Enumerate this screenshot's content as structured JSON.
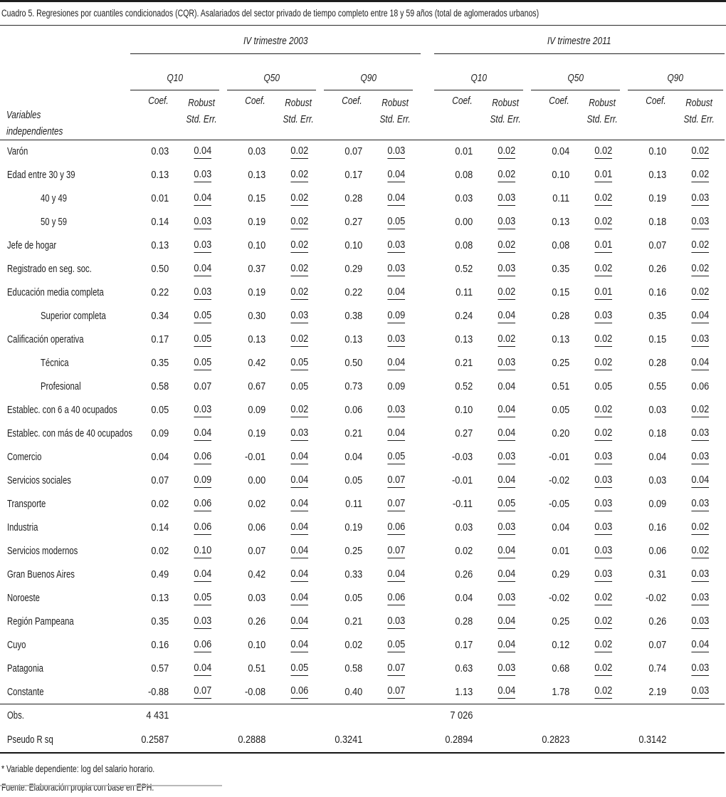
{
  "title": "Cuadro 5. Regresiones por cuantiles condicionados (CQR). Asalariados del sector privado de tiempo completo entre 18 y 59 años (total de aglomerados urbanos)",
  "colors": {
    "text": "#1e1e1e",
    "rule": "#1f1f1f",
    "remnant_rule": "#b9b9b9"
  },
  "table": {
    "variables_header_line1": "Variables",
    "variables_header_line2": "independientes",
    "group_2003": "IV trimestre 2003",
    "group_2011": "IV trimestre 2011",
    "quantiles": [
      "Q10",
      "Q50",
      "Q90"
    ],
    "coef_header": "Coef.",
    "se_header_line1": "Robust",
    "se_header_line2": "Std. Err.",
    "rows": [
      {
        "label": "Varón",
        "indent": false,
        "se_underline": true,
        "values": [
          "0.03",
          "0.04",
          "0.03",
          "0.02",
          "0.07",
          "0.03",
          "0.01",
          "0.02",
          "0.04",
          "0.02",
          "0.10",
          "0.02"
        ]
      },
      {
        "label": "Edad entre 30 y 39",
        "indent": false,
        "se_underline": true,
        "values": [
          "0.13",
          "0.03",
          "0.13",
          "0.02",
          "0.17",
          "0.04",
          "0.08",
          "0.02",
          "0.10",
          "0.01",
          "0.13",
          "0.02"
        ]
      },
      {
        "label": "40 y 49",
        "indent": true,
        "se_underline": true,
        "values": [
          "0.01",
          "0.04",
          "0.15",
          "0.02",
          "0.28",
          "0.04",
          "0.03",
          "0.03",
          "0.11",
          "0.02",
          "0.19",
          "0.03"
        ]
      },
      {
        "label": "50 y 59",
        "indent": true,
        "se_underline": true,
        "values": [
          "0.14",
          "0.03",
          "0.19",
          "0.02",
          "0.27",
          "0.05",
          "0.00",
          "0.03",
          "0.13",
          "0.02",
          "0.18",
          "0.03"
        ]
      },
      {
        "label": "Jefe de hogar",
        "indent": false,
        "se_underline": true,
        "values": [
          "0.13",
          "0.03",
          "0.10",
          "0.02",
          "0.10",
          "0.03",
          "0.08",
          "0.02",
          "0.08",
          "0.01",
          "0.07",
          "0.02"
        ]
      },
      {
        "label": "Registrado en seg. soc.",
        "indent": false,
        "se_underline": true,
        "values": [
          "0.50",
          "0.04",
          "0.37",
          "0.02",
          "0.29",
          "0.03",
          "0.52",
          "0.03",
          "0.35",
          "0.02",
          "0.26",
          "0.02"
        ]
      },
      {
        "label": "Educación media completa",
        "indent": false,
        "se_underline": true,
        "values": [
          "0.22",
          "0.03",
          "0.19",
          "0.02",
          "0.22",
          "0.04",
          "0.11",
          "0.02",
          "0.15",
          "0.01",
          "0.16",
          "0.02"
        ]
      },
      {
        "label": "Superior completa",
        "indent": true,
        "se_underline": true,
        "values": [
          "0.34",
          "0.05",
          "0.30",
          "0.03",
          "0.38",
          "0.09",
          "0.24",
          "0.04",
          "0.28",
          "0.03",
          "0.35",
          "0.04"
        ]
      },
      {
        "label": "Calificación operativa",
        "indent": false,
        "se_underline": true,
        "values": [
          "0.17",
          "0.05",
          "0.13",
          "0.02",
          "0.13",
          "0.03",
          "0.13",
          "0.02",
          "0.13",
          "0.02",
          "0.15",
          "0.03"
        ]
      },
      {
        "label": "Técnica",
        "indent": true,
        "se_underline": true,
        "values": [
          "0.35",
          "0.05",
          "0.42",
          "0.05",
          "0.50",
          "0.04",
          "0.21",
          "0.03",
          "0.25",
          "0.02",
          "0.28",
          "0.04"
        ]
      },
      {
        "label": "Profesional",
        "indent": true,
        "se_underline": false,
        "values": [
          "0.58",
          "0.07",
          "0.67",
          "0.05",
          "0.73",
          "0.09",
          "0.52",
          "0.04",
          "0.51",
          "0.05",
          "0.55",
          "0.06"
        ]
      },
      {
        "label": "Establec. con 6 a 40 ocupados",
        "indent": false,
        "se_underline": true,
        "values": [
          "0.05",
          "0.03",
          "0.09",
          "0.02",
          "0.06",
          "0.03",
          "0.10",
          "0.04",
          "0.05",
          "0.02",
          "0.03",
          "0.02"
        ]
      },
      {
        "label": "Establec. con más de 40 ocupados",
        "indent": false,
        "se_underline": true,
        "values": [
          "0.09",
          "0.04",
          "0.19",
          "0.03",
          "0.21",
          "0.04",
          "0.27",
          "0.04",
          "0.20",
          "0.02",
          "0.18",
          "0.03"
        ]
      },
      {
        "label": "Comercio",
        "indent": false,
        "se_underline": true,
        "values": [
          "0.04",
          "0.06",
          "-0.01",
          "0.04",
          "0.04",
          "0.05",
          "-0.03",
          "0.03",
          "-0.01",
          "0.03",
          "0.04",
          "0.03"
        ]
      },
      {
        "label": "Servicios sociales",
        "indent": false,
        "se_underline": true,
        "values": [
          "0.07",
          "0.09",
          "0.00",
          "0.04",
          "0.05",
          "0.07",
          "-0.01",
          "0.04",
          "-0.02",
          "0.03",
          "0.03",
          "0.04"
        ]
      },
      {
        "label": "Transporte",
        "indent": false,
        "se_underline": true,
        "values": [
          "0.02",
          "0.06",
          "0.02",
          "0.04",
          "0.11",
          "0.07",
          "-0.11",
          "0.05",
          "-0.05",
          "0.03",
          "0.09",
          "0.03"
        ]
      },
      {
        "label": "Industria",
        "indent": false,
        "se_underline": true,
        "values": [
          "0.14",
          "0.06",
          "0.06",
          "0.04",
          "0.19",
          "0.06",
          "0.03",
          "0.03",
          "0.04",
          "0.03",
          "0.16",
          "0.02"
        ]
      },
      {
        "label": "Servicios modernos",
        "indent": false,
        "se_underline": true,
        "values": [
          "0.02",
          "0.10",
          "0.07",
          "0.04",
          "0.25",
          "0.07",
          "0.02",
          "0.04",
          "0.01",
          "0.03",
          "0.06",
          "0.02"
        ]
      },
      {
        "label": "Gran Buenos Aires",
        "indent": false,
        "se_underline": true,
        "values": [
          "0.49",
          "0.04",
          "0.42",
          "0.04",
          "0.33",
          "0.04",
          "0.26",
          "0.04",
          "0.29",
          "0.03",
          "0.31",
          "0.03"
        ]
      },
      {
        "label": "Noroeste",
        "indent": false,
        "se_underline": true,
        "values": [
          "0.13",
          "0.05",
          "0.03",
          "0.04",
          "0.05",
          "0.06",
          "0.04",
          "0.03",
          "-0.02",
          "0.02",
          "-0.02",
          "0.03"
        ]
      },
      {
        "label": "Región Pampeana",
        "indent": false,
        "se_underline": true,
        "values": [
          "0.35",
          "0.03",
          "0.26",
          "0.04",
          "0.21",
          "0.03",
          "0.28",
          "0.04",
          "0.25",
          "0.02",
          "0.26",
          "0.03"
        ]
      },
      {
        "label": "Cuyo",
        "indent": false,
        "se_underline": true,
        "values": [
          "0.16",
          "0.06",
          "0.10",
          "0.04",
          "0.02",
          "0.05",
          "0.17",
          "0.04",
          "0.12",
          "0.02",
          "0.07",
          "0.04"
        ]
      },
      {
        "label": "Patagonia",
        "indent": false,
        "se_underline": true,
        "values": [
          "0.57",
          "0.04",
          "0.51",
          "0.05",
          "0.58",
          "0.07",
          "0.63",
          "0.03",
          "0.68",
          "0.02",
          "0.74",
          "0.03"
        ]
      },
      {
        "label": "Constante",
        "indent": false,
        "se_underline": true,
        "values": [
          "-0.88",
          "0.07",
          "-0.08",
          "0.06",
          "0.40",
          "0.07",
          "1.13",
          "0.04",
          "1.78",
          "0.02",
          "2.19",
          "0.03"
        ]
      }
    ],
    "obs_row": {
      "label": "Obs.",
      "value_2003": "4 431",
      "value_2011": "7 026"
    },
    "pseudo_row": {
      "label": "Pseudo R sq",
      "values": [
        "0.2587",
        "0.2888",
        "0.3241",
        "0.2894",
        "0.2823",
        "0.3142"
      ]
    }
  },
  "footnotes": [
    "* Variable dependiente: log del salario horario.",
    "Fuente: Elaboración propia con base en EPH."
  ]
}
